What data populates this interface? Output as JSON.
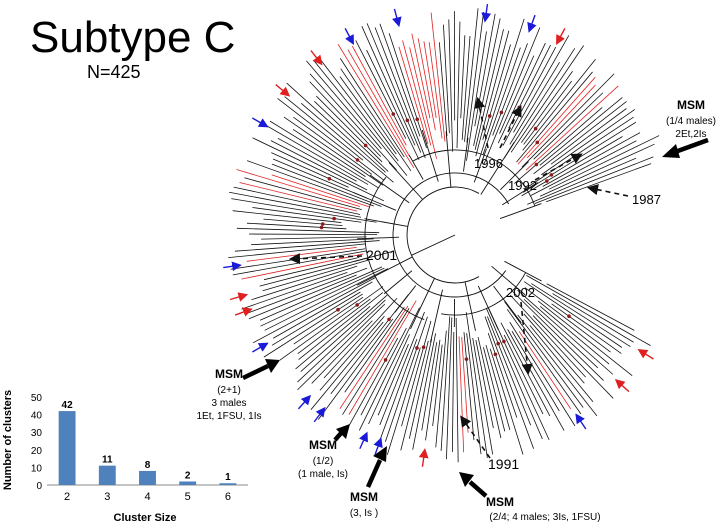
{
  "title": "Subtype C",
  "subtitle": "N=425",
  "years": {
    "y1996": "1996",
    "y1992": "1992",
    "y1987": "1987",
    "y2001": "2001",
    "y2002": "2002",
    "y1991": "1991"
  },
  "annotations": {
    "msm_top_right": {
      "title": "MSM",
      "line1": "(1/4 males)",
      "line2": "2Et,2Is"
    },
    "msm_left": {
      "title": "MSM",
      "line1": "(2+1)",
      "line2": "3 males",
      "line3": "1Et, 1FSU, 1Is"
    },
    "msm_bottom_left": {
      "title": "MSM",
      "line1": "(1/2)",
      "line2": "(1 male, Is)"
    },
    "msm_bottom_mid": {
      "title": "MSM",
      "line1": "(3, Is )"
    },
    "msm_bottom_right": {
      "title": "MSM",
      "line1": "(2/4; 4 males; 3Is, 1FSU)"
    }
  },
  "colors": {
    "branch": "#111111",
    "highlight": "#e02020",
    "dot": "#8b1a1a",
    "arrow_red": "#e02020",
    "arrow_blue": "#1a1ad8",
    "bar": "#4f81bd"
  },
  "chart_data": {
    "type": "bar",
    "categories": [
      "2",
      "3",
      "4",
      "5",
      "6"
    ],
    "values": [
      42,
      11,
      8,
      2,
      1
    ],
    "data_labels": [
      "42",
      "11",
      "8",
      "2",
      "1"
    ],
    "title": "",
    "xlabel": "Cluster Size",
    "ylabel": "Number of clusters",
    "ylim": [
      0,
      50
    ],
    "yticks": [
      "0",
      "10",
      "20",
      "30",
      "40",
      "50"
    ]
  }
}
